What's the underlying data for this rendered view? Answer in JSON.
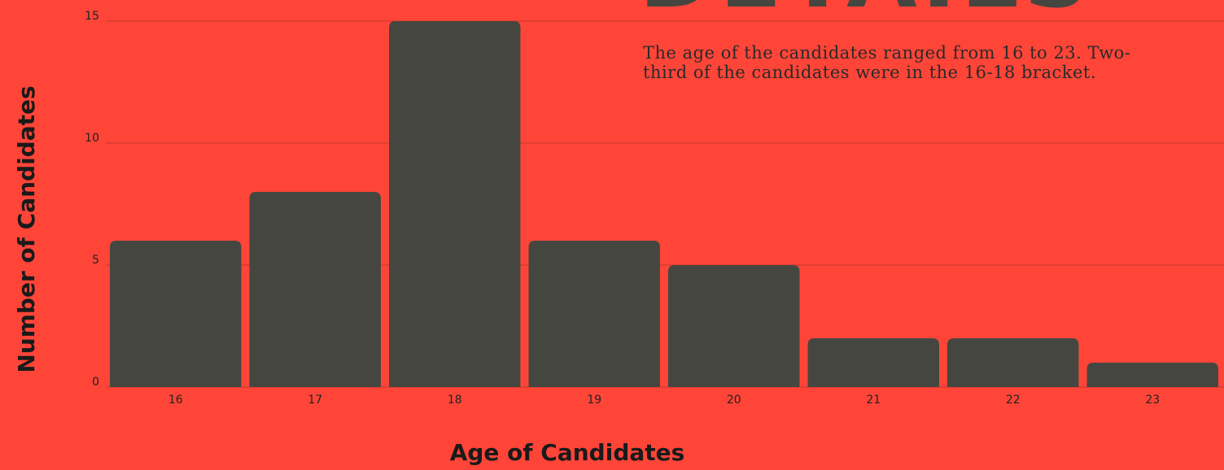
{
  "chart_data": {
    "type": "bar",
    "title": "DETAILS",
    "annotation": [
      "The age of the candidates ranged from 16 to 23. Two-",
      "third of the candidates were in the 16-18 bracket."
    ],
    "x_label": "Age of Candidates",
    "y_label": "Number of Candidates",
    "categories": [
      "16",
      "17",
      "18",
      "19",
      "20",
      "21",
      "22",
      "23"
    ],
    "values": [
      6,
      8,
      15,
      6,
      5,
      2,
      2,
      1
    ],
    "color": "#464641",
    "ylim": [
      0,
      15
    ],
    "yticks": [
      0,
      5,
      10,
      15
    ],
    "grid": true
  }
}
